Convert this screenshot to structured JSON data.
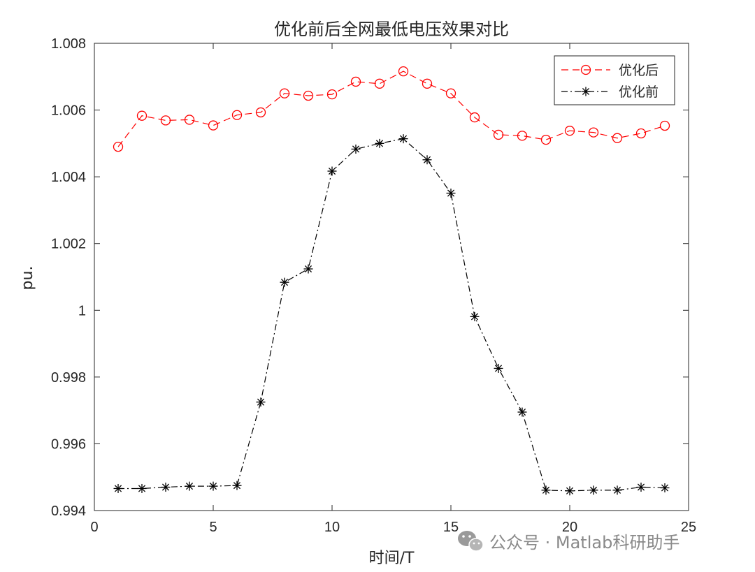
{
  "chart_data": {
    "type": "line",
    "title": "优化前后全网最低电压效果对比",
    "xlabel": "时间/T",
    "ylabel": "pu.",
    "xlim": [
      0,
      25
    ],
    "ylim": [
      0.994,
      1.008
    ],
    "xticks": [
      0,
      5,
      10,
      15,
      20,
      25
    ],
    "xtick_labels": [
      "0",
      "5",
      "10",
      "15",
      "20",
      "25"
    ],
    "yticks": [
      0.994,
      0.996,
      0.998,
      1.0,
      1.002,
      1.004,
      1.006,
      1.008
    ],
    "ytick_labels": [
      "0.994",
      "0.996",
      "0.998",
      "1",
      "1.002",
      "1.004",
      "1.006",
      "1.008"
    ],
    "grid": false,
    "legend_position": "top-right",
    "x": [
      1,
      2,
      3,
      4,
      5,
      6,
      7,
      8,
      9,
      10,
      11,
      12,
      13,
      14,
      15,
      16,
      17,
      18,
      19,
      20,
      21,
      22,
      23,
      24
    ],
    "series": [
      {
        "name": "优化后",
        "color": "#ff0000",
        "line_style": "dashed",
        "marker": "circle",
        "values": [
          1.0049,
          1.00583,
          1.00569,
          1.00571,
          1.00554,
          1.00585,
          1.00593,
          1.0065,
          1.00643,
          1.00647,
          1.00685,
          1.00679,
          1.00716,
          1.00679,
          1.0065,
          1.00578,
          1.00526,
          1.00523,
          1.00511,
          1.00538,
          1.00533,
          1.00516,
          1.0053,
          1.00553
        ]
      },
      {
        "name": "优化前",
        "color": "#000000",
        "line_style": "dash-dot",
        "marker": "asterisk",
        "values": [
          0.99466,
          0.99466,
          0.9947,
          0.99473,
          0.99473,
          0.99475,
          0.99725,
          1.00084,
          1.00124,
          1.00417,
          1.00483,
          1.005,
          1.00514,
          1.00451,
          1.00351,
          0.99981,
          0.99826,
          0.99695,
          0.99461,
          0.99459,
          0.99461,
          0.99461,
          0.9947,
          0.99468
        ]
      }
    ]
  },
  "watermark": {
    "text": "公众号 · Matlab科研助手",
    "icon": "wechat-icon"
  }
}
